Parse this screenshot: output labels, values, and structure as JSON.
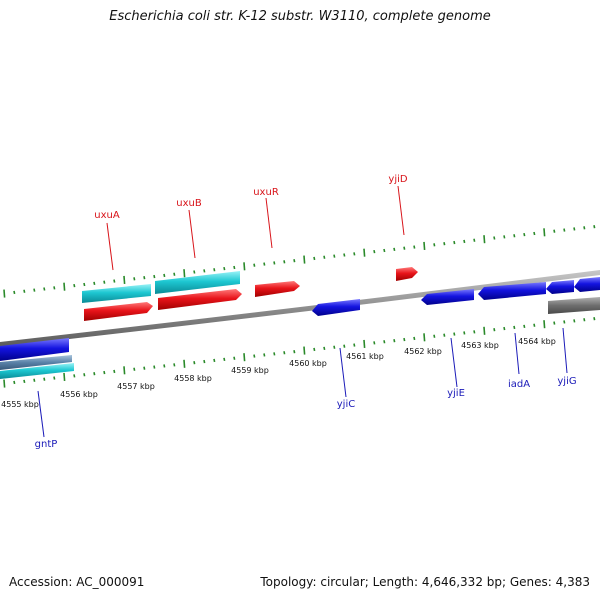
{
  "header": {
    "title": "Escherichia coli str. K-12 substr. W3110, complete genome"
  },
  "footer": {
    "accession": "Accession: AC_000091",
    "summary": "Topology: circular; Length: 4,646,332 bp; Genes: 4,383"
  },
  "colors": {
    "forward_gene": "#e8141a",
    "operon_cyan": "#1ec8d2",
    "reverse_gene": "#1414e0",
    "backbone": "#8c8c8c",
    "tick": "#2a8a2a",
    "label_red": "#d8141a",
    "label_blue": "#1a1ab8"
  },
  "axis": {
    "unit": "kbp",
    "labels": [
      "4555 kbp",
      "4556 kbp",
      "4557 kbp",
      "4558 kbp",
      "4559 kbp",
      "4560 kbp",
      "4561 kbp",
      "4562 kbp",
      "4563 kbp",
      "4564 kbp"
    ]
  },
  "genes": {
    "forward_labels": [
      "uxuA",
      "uxuB",
      "uxuR",
      "yjiD"
    ],
    "reverse_labels": [
      "gntP",
      "yjiC",
      "yjiE",
      "iadA",
      "yjiG"
    ]
  }
}
